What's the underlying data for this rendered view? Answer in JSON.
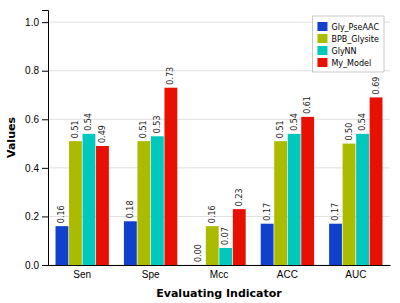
{
  "chart_data": {
    "type": "bar",
    "xlabel": "Evaluating Indicator",
    "ylabel": "Values",
    "categories": [
      "Sen",
      "Spe",
      "Mcc",
      "ACC",
      "AUC"
    ],
    "series": [
      {
        "name": "Gly_PseAAC",
        "color": "#1040cc",
        "values": [
          0.16,
          0.18,
          0.0,
          0.17,
          0.17
        ],
        "value_labels": [
          "0.16",
          "0.18",
          "0.00",
          "0.17",
          "0.17"
        ]
      },
      {
        "name": "BPB_Glysite",
        "color": "#aabc00",
        "values": [
          0.51,
          0.51,
          0.16,
          0.51,
          0.5
        ],
        "value_labels": [
          "0.51",
          "0.51",
          "0.16",
          "0.51",
          "0.50"
        ]
      },
      {
        "name": "GlyNN",
        "color": "#00c8bc",
        "values": [
          0.54,
          0.53,
          0.07,
          0.54,
          0.54
        ],
        "value_labels": [
          "0.54",
          "0.53",
          "0.07",
          "0.54",
          "0.54"
        ]
      },
      {
        "name": "My_Model",
        "color": "#e81000",
        "values": [
          0.49,
          0.73,
          0.23,
          0.61,
          0.69
        ],
        "value_labels": [
          "0.49",
          "0.73",
          "0.23",
          "0.61",
          "0.69"
        ]
      }
    ],
    "ylim": [
      0.0,
      1.05
    ],
    "yticks": [
      {
        "value": 0.0,
        "label": "0.0"
      },
      0.2,
      0.4,
      0.6,
      0.8,
      {
        "value": 1.0,
        "label": "1.0"
      }
    ],
    "grid": true,
    "legend": "upper right",
    "data_labels": true
  }
}
